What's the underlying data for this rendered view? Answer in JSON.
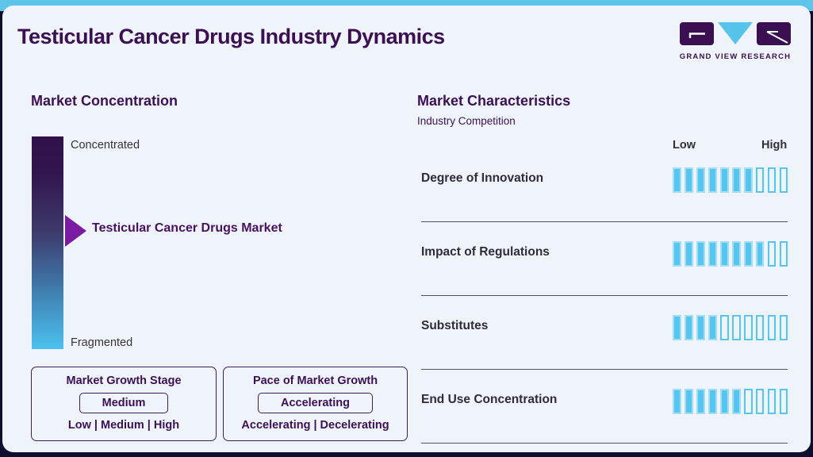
{
  "header": {
    "title": "Testicular Cancer Drugs Industry Dynamics",
    "logo_brand": "GRAND VIEW RESEARCH"
  },
  "market_concentration": {
    "heading": "Market Concentration",
    "top_label": "Concentrated",
    "bottom_label": "Fragmented",
    "pointer_label": "Testicular Cancer Drugs Market"
  },
  "growth_boxes": [
    {
      "title": "Market Growth Stage",
      "value": "Medium",
      "options": "Low | Medium | High"
    },
    {
      "title": "Pace of Market Growth",
      "value": "Accelerating",
      "options": "Accelerating | Decelerating"
    }
  ],
  "market_characteristics": {
    "heading": "Market Characteristics",
    "subheading": "Industry Competition",
    "scale_low": "Low",
    "scale_high": "High",
    "rows": [
      {
        "label": "Degree of Innovation",
        "filled": 7,
        "total": 10
      },
      {
        "label": "Impact of Regulations",
        "filled": 8,
        "total": 10
      },
      {
        "label": "Substitutes",
        "filled": 4,
        "total": 10
      },
      {
        "label": "End Use Concentration",
        "filled": 6,
        "total": 10
      }
    ]
  },
  "chart_data": {
    "type": "bar",
    "title": "Market Characteristics — Industry Competition",
    "categories": [
      "Degree of Innovation",
      "Impact of Regulations",
      "Substitutes",
      "End Use Concentration"
    ],
    "values": [
      7,
      8,
      4,
      6
    ],
    "xlabel": "Low → High",
    "ylabel": "",
    "xlim": [
      0,
      10
    ],
    "legend_position": "top-right",
    "grid": false,
    "notes": "Each rating shown as filled segments out of 10; Market Growth Stage = Medium (Low|Medium|High); Pace of Market Growth = Accelerating (Accelerating|Decelerating); concentration scale runs Concentrated → Fragmented with pointer at Testicular Cancer Drugs Market"
  },
  "colors": {
    "accent_blue": "#55c6ef",
    "dark_purple": "#3a1053",
    "arrow_purple": "#7a1ca3",
    "card_bg": "#eff4fa",
    "outer_bg": "#0e0e2e",
    "top_strip": "#5fc4e9"
  }
}
